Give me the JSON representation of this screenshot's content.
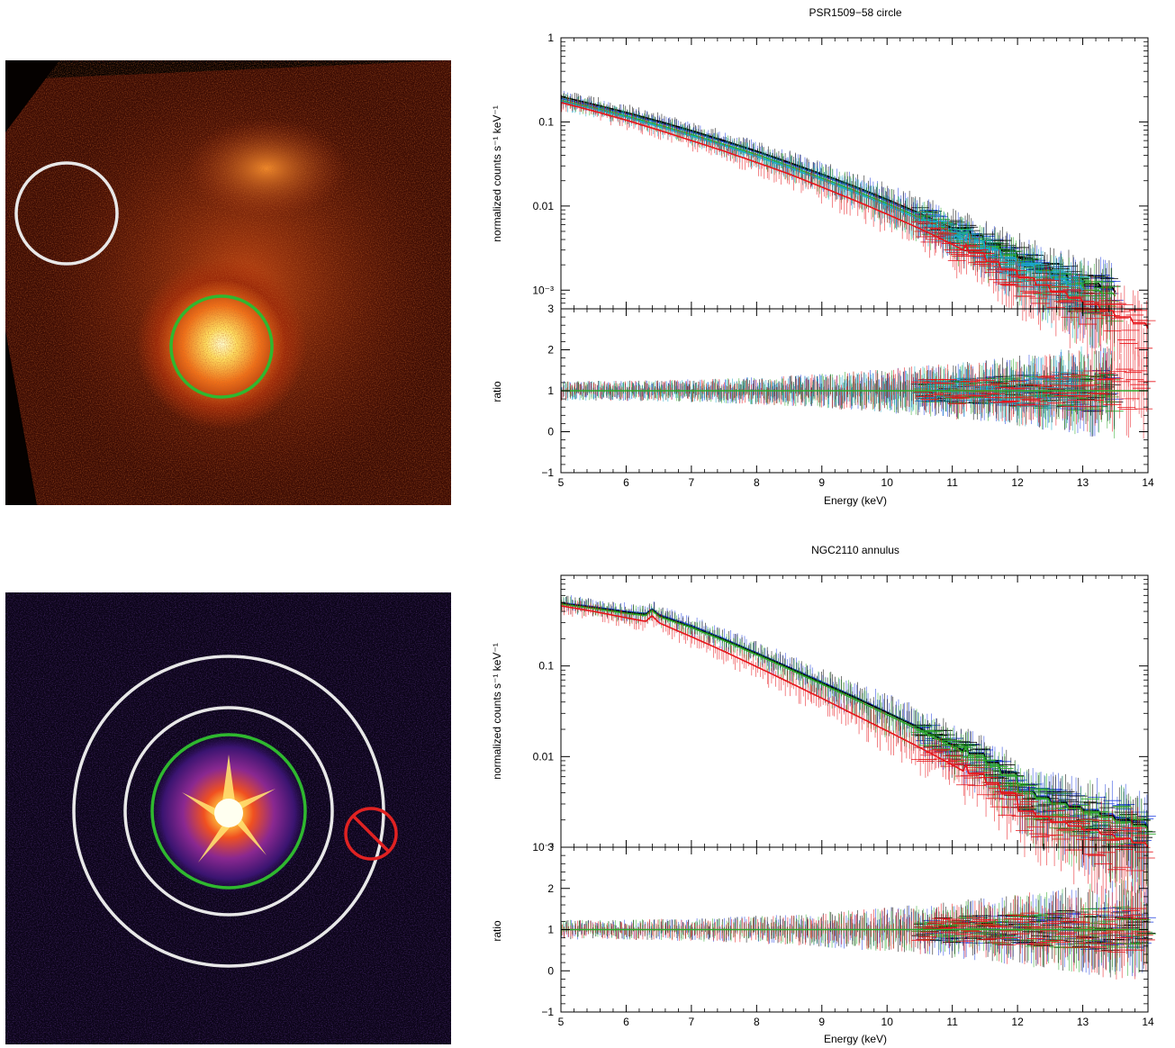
{
  "colors": {
    "detector_1": "#000000",
    "detector_2": "#e8141a",
    "detector_3": "#2aa82a",
    "detector_4": "#1f3fe0",
    "model_extra": "#1aa8c8",
    "source_region": "#2fb82f",
    "background_region": "#e8e8e8",
    "excluded_region": "#e02222"
  },
  "images": [
    {
      "colormap": "hot",
      "regions": [
        {
          "kind": "circle",
          "role": "source",
          "color": "#2fb82f"
        },
        {
          "kind": "circle",
          "role": "background",
          "color": "#e8e8e8"
        }
      ]
    },
    {
      "colormap": "purple-hot",
      "regions": [
        {
          "kind": "circle",
          "role": "source",
          "color": "#2fb82f"
        },
        {
          "kind": "annulus",
          "role": "background",
          "color": "#e8e8e8"
        },
        {
          "kind": "excluded-circle",
          "role": "excluded",
          "color": "#e02222"
        }
      ]
    }
  ],
  "chart_data": [
    {
      "type": "line",
      "title": "PSR1509−58 circle",
      "xlabel": "Energy (keV)",
      "xlim": [
        5,
        14
      ],
      "xticks": [
        "5",
        "6",
        "7",
        "8",
        "9",
        "10",
        "11",
        "12",
        "13",
        "14"
      ],
      "upper": {
        "ylabel": "normalized counts s⁻¹ keV⁻¹",
        "yscale": "log",
        "ylim": [
          0.0006,
          1
        ],
        "yticks": [
          {
            "value": 1,
            "label": "1"
          },
          {
            "value": 0.1,
            "label": "0.1"
          },
          {
            "value": 0.01,
            "label": "0.01"
          },
          {
            "value": 0.001,
            "label": "10⁻³"
          }
        ]
      },
      "lower": {
        "ylabel": "ratio",
        "ylim": [
          -1,
          3
        ],
        "yticks": [
          "−1",
          "0",
          "1",
          "2",
          "3"
        ],
        "reference_line": 1
      },
      "x": [
        5.0,
        5.5,
        6.0,
        6.5,
        7.0,
        7.5,
        8.0,
        8.5,
        9.0,
        9.5,
        10.0,
        10.5,
        11.0,
        11.5,
        12.0,
        12.5,
        13.0,
        13.5,
        14.0
      ],
      "series": [
        {
          "color": "#1f3fe0",
          "values": [
            0.19,
            0.155,
            0.125,
            0.098,
            0.076,
            0.058,
            0.044,
            0.032,
            0.023,
            0.0165,
            0.0115,
            0.0078,
            0.0052,
            0.0034,
            0.0022,
            0.0015,
            0.0011,
            0.00095,
            null
          ]
        },
        {
          "color": "#000000",
          "values": [
            0.2,
            0.162,
            0.13,
            0.102,
            0.079,
            0.06,
            0.045,
            0.033,
            0.024,
            0.0172,
            0.012,
            0.0082,
            0.0055,
            0.0036,
            0.0024,
            0.0016,
            0.0012,
            0.00095,
            null
          ]
        },
        {
          "color": "#2aa82a",
          "values": [
            0.18,
            0.148,
            0.118,
            0.092,
            0.071,
            0.054,
            0.041,
            0.03,
            0.0215,
            0.0153,
            0.0107,
            0.0073,
            0.0049,
            0.0032,
            0.0021,
            0.0014,
            0.001,
            0.00085,
            null
          ]
        },
        {
          "color": "#1aa8c8",
          "values": [
            0.175,
            0.143,
            0.114,
            0.088,
            0.068,
            0.052,
            0.039,
            0.0285,
            0.0205,
            0.0146,
            0.0102,
            0.0069,
            0.0046,
            0.003,
            0.002,
            0.00135,
            0.00095,
            null,
            null
          ]
        },
        {
          "color": "#e8141a",
          "values": [
            0.17,
            0.135,
            0.105,
            0.08,
            0.06,
            0.045,
            0.033,
            0.024,
            0.0168,
            0.0117,
            0.008,
            0.0054,
            0.0035,
            0.0022,
            0.0014,
            0.00095,
            0.00068,
            0.00048,
            0.00035
          ]
        }
      ]
    },
    {
      "type": "line",
      "title": "NGC2110 annulus",
      "xlabel": "Energy (keV)",
      "xlim": [
        5,
        14
      ],
      "xticks": [
        "5",
        "6",
        "7",
        "8",
        "9",
        "10",
        "11",
        "12",
        "13",
        "14"
      ],
      "upper": {
        "ylabel": "normalized counts s⁻¹ keV⁻¹",
        "yscale": "log",
        "ylim": [
          0.001,
          1
        ],
        "yticks": [
          {
            "value": 0.1,
            "label": "0.1"
          },
          {
            "value": 0.01,
            "label": "0.01"
          },
          {
            "value": 0.001,
            "label": "10⁻³"
          }
        ]
      },
      "lower": {
        "ylabel": "ratio",
        "ylim": [
          -1,
          3
        ],
        "yticks": [
          "−1",
          "0",
          "1",
          "2",
          "3"
        ],
        "reference_line": 1
      },
      "x": [
        5.0,
        5.5,
        6.0,
        6.3,
        6.4,
        6.5,
        7.0,
        7.5,
        8.0,
        8.5,
        9.0,
        9.5,
        10.0,
        10.5,
        11.0,
        11.5,
        11.9,
        12.0,
        12.5,
        13.0,
        13.5,
        14.0
      ],
      "series": [
        {
          "color": "#1f3fe0",
          "values": [
            0.5,
            0.45,
            0.4,
            0.38,
            0.43,
            0.37,
            0.28,
            0.2,
            0.14,
            0.097,
            0.067,
            0.046,
            0.031,
            0.021,
            0.0138,
            0.0088,
            0.0058,
            0.0042,
            0.0032,
            0.0026,
            0.0021,
            0.0017
          ]
        },
        {
          "color": "#000000",
          "values": [
            0.49,
            0.44,
            0.39,
            0.37,
            0.42,
            0.36,
            0.27,
            0.195,
            0.137,
            0.095,
            0.065,
            0.045,
            0.0305,
            0.0205,
            0.0135,
            0.0086,
            0.0056,
            0.0041,
            0.0031,
            0.0025,
            0.002,
            0.0016
          ]
        },
        {
          "color": "#2aa82a",
          "values": [
            0.48,
            0.43,
            0.38,
            0.36,
            0.41,
            0.35,
            0.265,
            0.19,
            0.133,
            0.092,
            0.063,
            0.043,
            0.029,
            0.0195,
            0.0128,
            0.0082,
            0.0053,
            0.0039,
            0.003,
            0.0024,
            0.0019,
            0.00155
          ]
        },
        {
          "color": "#e8141a",
          "values": [
            0.46,
            0.4,
            0.34,
            0.31,
            0.36,
            0.3,
            0.21,
            0.145,
            0.098,
            0.066,
            0.044,
            0.029,
            0.0192,
            0.0126,
            0.0081,
            0.0051,
            0.0034,
            0.0025,
            0.0019,
            0.00155,
            0.00125,
            0.001
          ]
        }
      ]
    }
  ]
}
